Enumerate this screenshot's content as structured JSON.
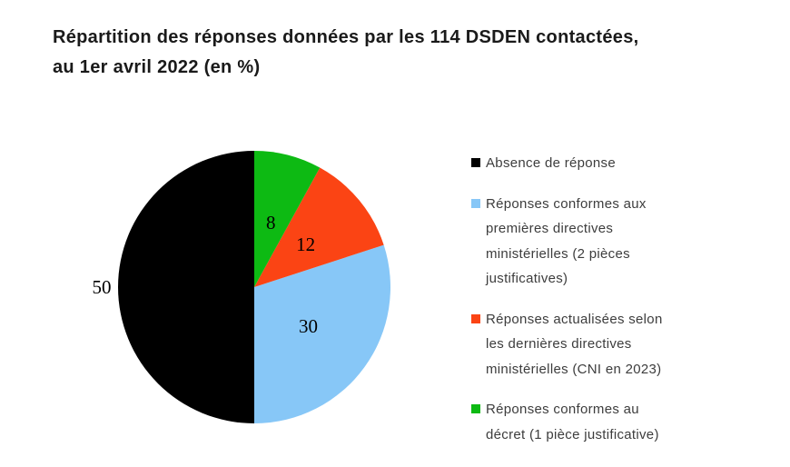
{
  "title": {
    "lines": [
      "Répartition des réponses données par les 114 DSDEN contactées,",
      "au 1er avril 2022 (en %)"
    ]
  },
  "chart_data": {
    "type": "pie",
    "title": "Répartition des réponses données par les 114 DSDEN contactées, au 1er avril 2022 (en %)",
    "unit": "%",
    "total": 100,
    "start_angle": "top",
    "direction": "counterclockwise",
    "legend_position": "right",
    "value_label_color": "#000000",
    "slices": [
      {
        "label": "Absence de réponse",
        "value": 50,
        "color": "#000000",
        "label_outside": true,
        "legend_lines": [
          "Absence de réponse"
        ]
      },
      {
        "label": "Réponses conformes aux premières directives ministérielles (2 pièces justificatives)",
        "value": 30,
        "color": "#87C7F7",
        "label_outside": false,
        "legend_lines": [
          "Réponses conformes aux",
          "premières directives",
          "ministérielles (2 pièces",
          "justificatives)"
        ]
      },
      {
        "label": "Réponses actualisées selon les dernières directives ministérielles (CNI en 2023)",
        "value": 12,
        "color": "#FB4414",
        "label_outside": false,
        "legend_lines": [
          "Réponses actualisées selon",
          "les dernières directives",
          "ministérielles (CNI en 2023)"
        ]
      },
      {
        "label": "Réponses conformes au décret (1 pièce justificative)",
        "value": 8,
        "color": "#0DBA13",
        "label_outside": false,
        "legend_lines": [
          "Réponses conformes au",
          "décret (1 pièce justificative)"
        ]
      }
    ]
  }
}
